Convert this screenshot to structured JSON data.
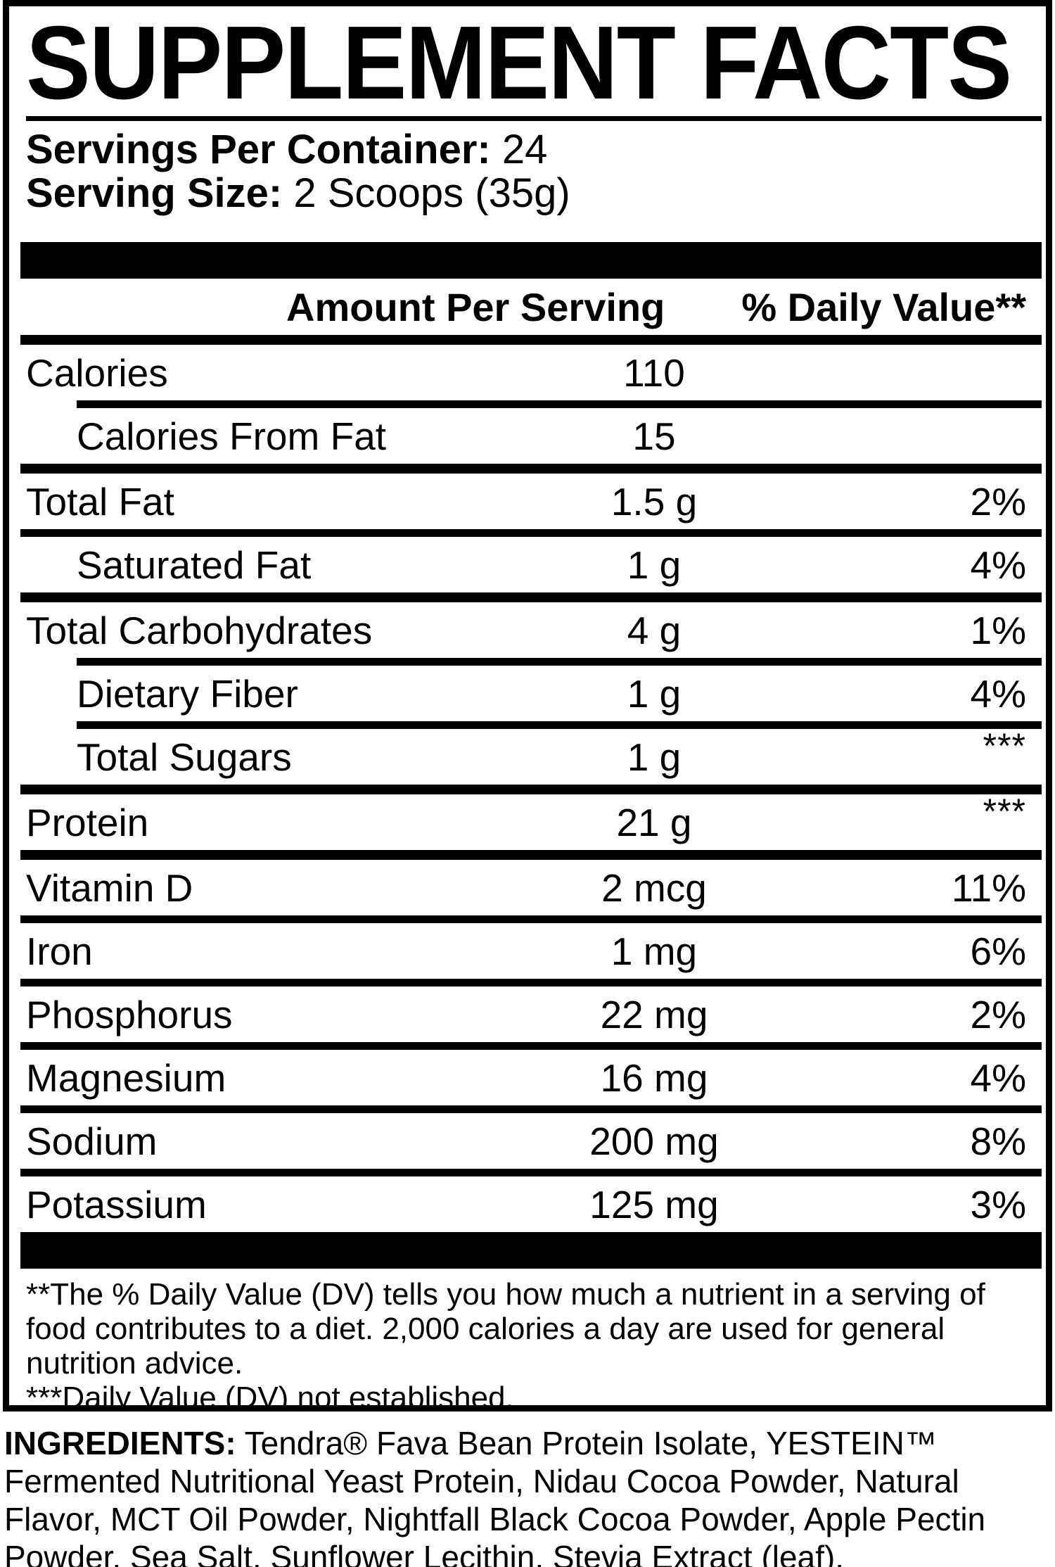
{
  "colors": {
    "ink": "#000000",
    "paper": "#ffffff"
  },
  "title": "SUPPLEMENT FACTS",
  "serving": {
    "servings_label": "Servings Per Container:",
    "servings_value": " 24",
    "size_label": "Serving Size:",
    "size_value": " 2 Scoops (35g)"
  },
  "table": {
    "amount_header": "Amount Per Serving",
    "dv_header": "% Daily Value**",
    "rows": [
      {
        "name": "Calories",
        "amount": "110",
        "dv": "",
        "stars": false,
        "indent": false,
        "rule_after": "indented"
      },
      {
        "name": "Calories From Fat",
        "amount": "15",
        "dv": "",
        "stars": false,
        "indent": true,
        "rule_after": "thick"
      },
      {
        "name": "Total Fat",
        "amount": "1.5 g",
        "dv": "2%",
        "stars": false,
        "indent": false,
        "rule_after": "normal"
      },
      {
        "name": "Saturated Fat",
        "amount": "1 g",
        "dv": "4%",
        "stars": false,
        "indent": true,
        "rule_after": "thick"
      },
      {
        "name": "Total Carbohydrates",
        "amount": "4 g",
        "dv": "1%",
        "stars": false,
        "indent": false,
        "rule_after": "indented"
      },
      {
        "name": "Dietary Fiber",
        "amount": "1 g",
        "dv": "4%",
        "stars": false,
        "indent": true,
        "rule_after": "indented"
      },
      {
        "name": "Total Sugars",
        "amount": "1 g",
        "dv": "***",
        "stars": true,
        "indent": true,
        "rule_after": "thick"
      },
      {
        "name": "Protein",
        "amount": "21 g",
        "dv": "***",
        "stars": true,
        "indent": false,
        "rule_after": "thick"
      },
      {
        "name": "Vitamin D",
        "amount": "2 mcg",
        "dv": "11%",
        "stars": false,
        "indent": false,
        "rule_after": "normal"
      },
      {
        "name": "Iron",
        "amount": "1 mg",
        "dv": "6%",
        "stars": false,
        "indent": false,
        "rule_after": "normal"
      },
      {
        "name": "Phosphorus",
        "amount": "22 mg",
        "dv": "2%",
        "stars": false,
        "indent": false,
        "rule_after": "normal"
      },
      {
        "name": "Magnesium",
        "amount": "16 mg",
        "dv": "4%",
        "stars": false,
        "indent": false,
        "rule_after": "normal"
      },
      {
        "name": "Sodium",
        "amount": "200 mg",
        "dv": "8%",
        "stars": false,
        "indent": false,
        "rule_after": "normal"
      },
      {
        "name": "Potassium",
        "amount": "125 mg",
        "dv": "3%",
        "stars": false,
        "indent": false,
        "rule_after": "none"
      }
    ]
  },
  "footnotes": {
    "dv_note": "**The % Daily Value (DV) tells you how much a nutrient in a serving of food contributes to a diet. 2,000 calories a day are used for general nutrition advice.",
    "not_established_note": "***Daily Value (DV) not established."
  },
  "ingredients": {
    "label": "INGREDIENTS:",
    "text": " Tendra® Fava Bean Protein Isolate, YESTEIN™ Fermented Nutritional Yeast Protein, Nidau Cocoa Powder, Natural Flavor, MCT Oil Powder, Nightfall Black Cocoa Powder, Apple Pectin Powder, Sea Salt, Sunflower Lecithin, Stevia Extract (leaf)."
  }
}
